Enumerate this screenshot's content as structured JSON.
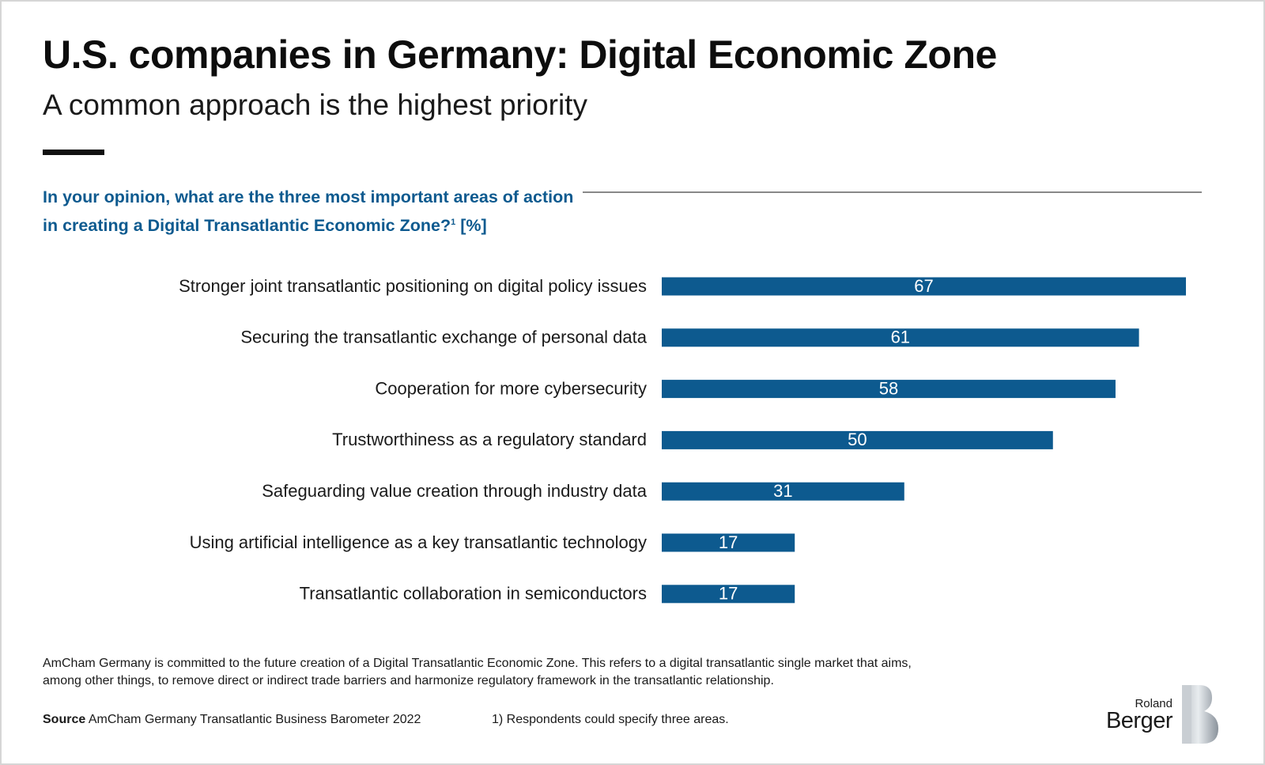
{
  "header": {
    "title": "U.S. companies in Germany: Digital Economic Zone",
    "subtitle": "A common approach is the highest priority"
  },
  "question": {
    "line1": "In your opinion, what are the three most important areas of action",
    "line2": "in creating a Digital Transatlantic Economic Zone?",
    "footnote_mark": "1",
    "unit": " [%]"
  },
  "chart_data": {
    "type": "bar",
    "orientation": "horizontal",
    "categories": [
      "Stronger joint transatlantic positioning on digital policy issues",
      "Securing the transatlantic exchange of personal data",
      "Cooperation for more cybersecurity",
      "Trustworthiness as a regulatory standard",
      "Safeguarding value creation through industry data",
      "Using artificial intelligence as a key transatlantic technology",
      "Transatlantic collaboration in semiconductors"
    ],
    "values": [
      67,
      61,
      58,
      50,
      31,
      17,
      17
    ],
    "bar_color": "#0d5a8f",
    "value_label_color": "#ffffff",
    "xlim": [
      0,
      67
    ],
    "grid": false
  },
  "note": {
    "line1": "AmCham Germany is committed to the future creation of a Digital Transatlantic Economic Zone. This refers to a digital transatlantic single market that aims,",
    "line2": "among other things, to remove direct or indirect trade barriers and harmonize regulatory framework in the transatlantic relationship."
  },
  "source": {
    "label": "Source",
    "text": " AmCham Germany Transatlantic Business Barometer 2022"
  },
  "footnote": "1) Respondents could specify three areas.",
  "logo": {
    "small": "Roland",
    "big": "Berger"
  },
  "colors": {
    "accent": "#0d5a8f",
    "text": "#111111"
  }
}
